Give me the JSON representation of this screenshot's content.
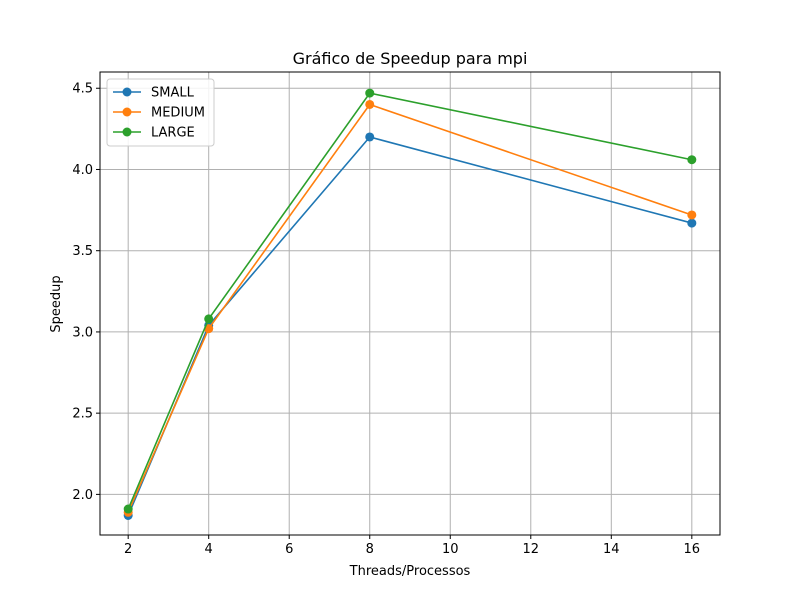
{
  "chart_data": {
    "type": "line",
    "title": "Gráfico de Speedup para mpi",
    "xlabel": "Threads/Processos",
    "ylabel": "Speedup",
    "x": [
      2,
      4,
      8,
      16
    ],
    "xlim": [
      1.3,
      16.7
    ],
    "ylim": [
      1.75,
      4.6
    ],
    "xticks": [
      2,
      4,
      6,
      8,
      10,
      12,
      14,
      16
    ],
    "yticks": [
      2.0,
      2.5,
      3.0,
      3.5,
      4.0,
      4.5
    ],
    "ytick_labels": [
      "2.0",
      "2.5",
      "3.0",
      "3.5",
      "4.0",
      "4.5"
    ],
    "grid": true,
    "legend_position": "top-left",
    "series": [
      {
        "name": "SMALL",
        "color": "#1f77b4",
        "values": [
          1.87,
          3.04,
          4.2,
          3.67
        ]
      },
      {
        "name": "MEDIUM",
        "color": "#ff7f0e",
        "values": [
          1.89,
          3.02,
          4.4,
          3.72
        ]
      },
      {
        "name": "LARGE",
        "color": "#2ca02c",
        "values": [
          1.91,
          3.08,
          4.47,
          4.06
        ]
      }
    ]
  }
}
